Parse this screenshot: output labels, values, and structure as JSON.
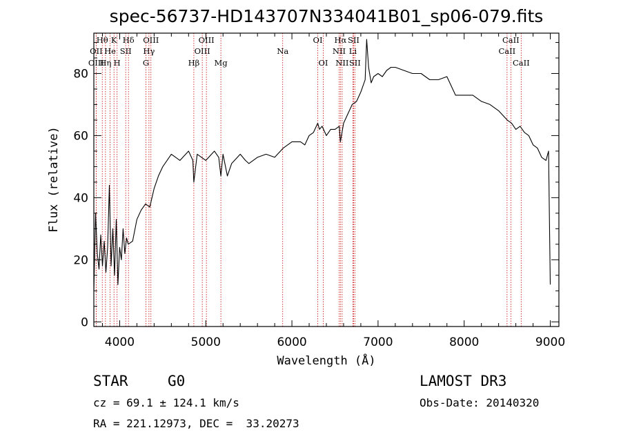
{
  "chart_data": {
    "type": "line",
    "title": "spec-56737-HD143707N334041B01_sp06-079.fits",
    "xlabel": "Wavelength (Å)",
    "ylabel": "Flux (relative)",
    "xlim": [
      3700,
      9100
    ],
    "ylim": [
      -1.5,
      93
    ],
    "xticks": [
      4000,
      5000,
      6000,
      7000,
      8000,
      9000
    ],
    "yticks": [
      0,
      20,
      40,
      60,
      80
    ],
    "series": [
      {
        "name": "flux",
        "x": [
          3700,
          3720,
          3740,
          3760,
          3780,
          3800,
          3820,
          3840,
          3860,
          3880,
          3900,
          3920,
          3940,
          3960,
          3980,
          4000,
          4020,
          4040,
          4060,
          4080,
          4100,
          4150,
          4200,
          4250,
          4300,
          4350,
          4400,
          4450,
          4500,
          4600,
          4700,
          4800,
          4850,
          4861,
          4900,
          5000,
          5100,
          5150,
          5175,
          5200,
          5250,
          5300,
          5400,
          5460,
          5500,
          5600,
          5700,
          5800,
          5900,
          6000,
          6100,
          6150,
          6200,
          6250,
          6300,
          6320,
          6350,
          6400,
          6450,
          6500,
          6550,
          6563,
          6600,
          6650,
          6700,
          6750,
          6800,
          6850,
          6868,
          6890,
          6920,
          6950,
          7000,
          7050,
          7100,
          7150,
          7200,
          7300,
          7400,
          7500,
          7600,
          7700,
          7800,
          7900,
          8000,
          8100,
          8200,
          8300,
          8400,
          8500,
          8550,
          8600,
          8650,
          8700,
          8750,
          8800,
          8850,
          8900,
          8950,
          8980,
          9000
        ],
        "y": [
          10,
          35,
          22,
          17,
          28,
          18,
          26,
          16,
          24,
          44,
          18,
          30,
          15,
          33,
          12,
          24,
          20,
          30,
          22,
          27,
          25,
          26,
          33,
          36,
          38,
          37,
          43,
          47,
          50,
          54,
          52,
          55,
          52,
          45,
          54,
          52,
          55,
          53,
          47,
          54,
          47,
          51,
          54,
          52,
          51,
          53,
          54,
          53,
          56,
          58,
          58,
          57,
          60,
          61,
          64,
          62,
          63,
          60,
          62,
          62,
          63,
          58,
          64,
          67,
          70,
          71,
          74,
          78,
          91,
          82,
          77,
          79,
          80,
          79,
          81,
          82,
          82,
          81,
          80,
          80,
          78,
          78,
          79,
          73,
          73,
          73,
          71,
          70,
          68,
          65,
          64,
          62,
          63,
          61,
          60,
          57,
          56,
          53,
          52,
          55,
          12
        ]
      }
    ],
    "spectral_lines": [
      {
        "label": "Hθ",
        "wavelength": 3798,
        "row": 1
      },
      {
        "label": "OII",
        "wavelength": 3727,
        "row": 2
      },
      {
        "label": "OIII",
        "wavelength": 3727,
        "row": 3
      },
      {
        "label": "He",
        "wavelength": 3889,
        "row": 2
      },
      {
        "label": "Hη",
        "wavelength": 3835,
        "row": 3
      },
      {
        "label": "K",
        "wavelength": 3934,
        "row": 1
      },
      {
        "label": "SII",
        "wavelength": 4070,
        "row": 2
      },
      {
        "label": "H",
        "wavelength": 3970,
        "row": 3
      },
      {
        "label": "Hδ",
        "wavelength": 4102,
        "row": 1
      },
      {
        "label": "OIII",
        "wavelength": 4363,
        "row": 1
      },
      {
        "label": "Hγ",
        "wavelength": 4340,
        "row": 2
      },
      {
        "label": "G",
        "wavelength": 4305,
        "row": 3
      },
      {
        "label": "Hβ",
        "wavelength": 4861,
        "row": 3
      },
      {
        "label": "OIII",
        "wavelength": 5007,
        "row": 1
      },
      {
        "label": "OIII",
        "wavelength": 4959,
        "row": 2
      },
      {
        "label": "Mg",
        "wavelength": 5175,
        "row": 3
      },
      {
        "label": "Na",
        "wavelength": 5893,
        "row": 2
      },
      {
        "label": "OI",
        "wavelength": 6300,
        "row": 1
      },
      {
        "label": "OI",
        "wavelength": 6364,
        "row": 3
      },
      {
        "label": "Hα",
        "wavelength": 6563,
        "row": 1
      },
      {
        "label": "SII",
        "wavelength": 6716,
        "row": 1
      },
      {
        "label": "NII",
        "wavelength": 6548,
        "row": 2
      },
      {
        "label": "Li",
        "wavelength": 6708,
        "row": 2
      },
      {
        "label": "NII",
        "wavelength": 6583,
        "row": 3
      },
      {
        "label": "SII",
        "wavelength": 6731,
        "row": 3
      },
      {
        "label": "CaII",
        "wavelength": 8542,
        "row": 1
      },
      {
        "label": "CaII",
        "wavelength": 8498,
        "row": 2
      },
      {
        "label": "CaII",
        "wavelength": 8662,
        "row": 3
      }
    ],
    "colors": {
      "spectrum": "#000000",
      "line_markers": "#cc0000",
      "axes": "#000000"
    }
  },
  "info": {
    "object_class": "STAR",
    "subclass": "G0",
    "survey": "LAMOST DR3",
    "redshift_text": "cz = 69.1 ± 124.1 km/s",
    "obs_date_text": "Obs-Date: 20140320",
    "coords_text": "RA = 221.12973, DEC =  33.20273"
  }
}
